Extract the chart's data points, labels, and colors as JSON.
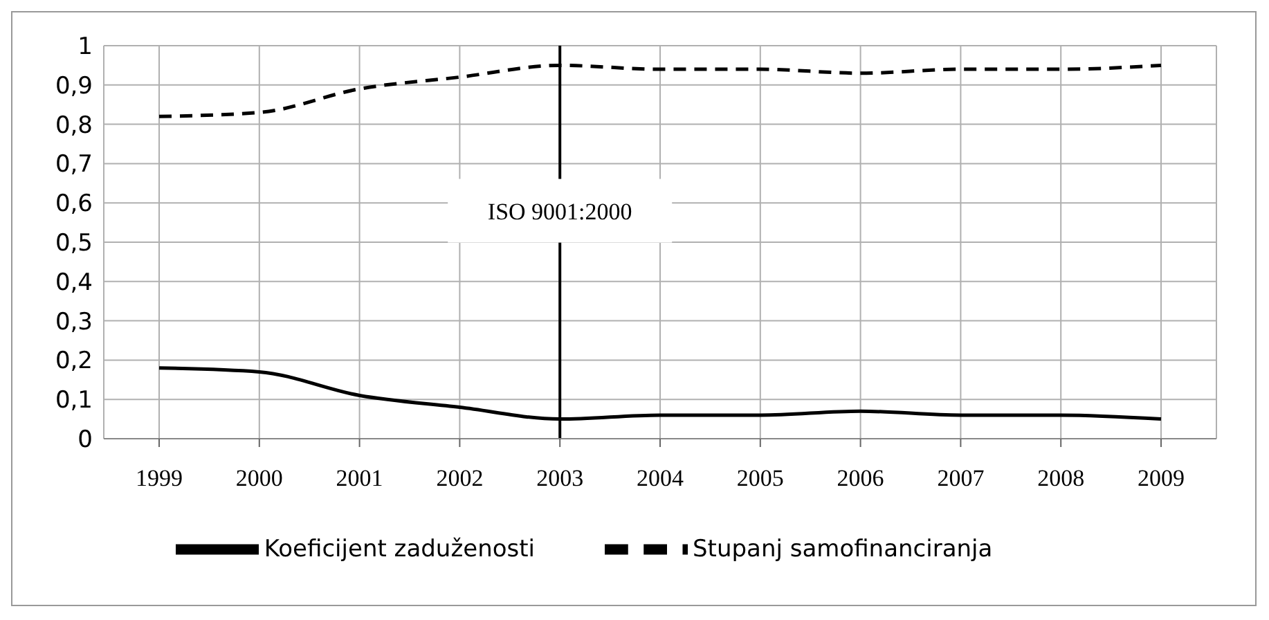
{
  "chart_data": {
    "type": "line",
    "categories": [
      "1999",
      "2000",
      "2001",
      "2002",
      "2003",
      "2004",
      "2005",
      "2006",
      "2007",
      "2008",
      "2009"
    ],
    "series": [
      {
        "name": "Koeficijent zaduženosti",
        "color": "#000000",
        "line_style": "solid",
        "values": [
          0.18,
          0.17,
          0.11,
          0.08,
          0.05,
          0.06,
          0.06,
          0.07,
          0.06,
          0.06,
          0.05
        ]
      },
      {
        "name": "Stupanj samofinanciranja",
        "color": "#000000",
        "line_style": "dashed",
        "values": [
          0.82,
          0.83,
          0.89,
          0.92,
          0.95,
          0.94,
          0.94,
          0.93,
          0.94,
          0.94,
          0.95
        ]
      }
    ],
    "ylim": [
      0,
      1
    ],
    "yticks": [
      0,
      {
        "value": 0.1,
        "label": "0,1"
      },
      {
        "value": 0.2,
        "label": "0,2"
      },
      {
        "value": 0.3,
        "label": "0,3"
      },
      {
        "value": 0.4,
        "label": "0,4"
      },
      {
        "value": 0.5,
        "label": "0,5"
      },
      {
        "value": 0.6,
        "label": "0,6"
      },
      {
        "value": 0.7,
        "label": "0,7"
      },
      {
        "value": 0.8,
        "label": "0,8"
      },
      {
        "value": 0.9,
        "label": "0,9"
      },
      1
    ],
    "ref_lines": [
      {
        "axis": "x",
        "value": "2003",
        "label": "ISO 9001:2000",
        "color": "#000000"
      }
    ],
    "grid": true,
    "legend": "bottom",
    "marker": "none"
  }
}
